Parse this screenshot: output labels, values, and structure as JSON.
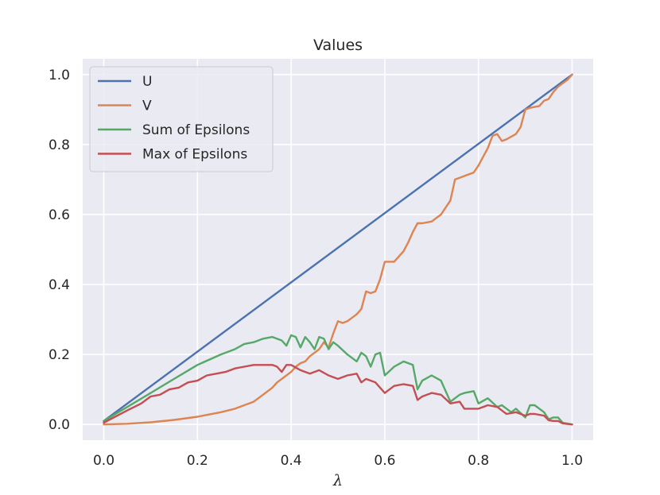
{
  "chart_data": {
    "type": "line",
    "title": "Values",
    "xlabel": "λ",
    "ylabel": "",
    "xlim": [
      -0.045,
      1.045
    ],
    "ylim": [
      -0.045,
      1.045
    ],
    "xticks": [
      0.0,
      0.2,
      0.4,
      0.6,
      0.8,
      1.0
    ],
    "xtick_labels": [
      "0.0",
      "0.2",
      "0.4",
      "0.6",
      "0.8",
      "1.0"
    ],
    "yticks": [
      0.0,
      0.2,
      0.4,
      0.6,
      0.8,
      1.0
    ],
    "ytick_labels": [
      "0.0",
      "0.2",
      "0.4",
      "0.6",
      "0.8",
      "1.0"
    ],
    "grid": true,
    "legend_position": "top-left",
    "background_color": "#eaeaf2",
    "series": [
      {
        "name": "U",
        "color": "#4c72b0",
        "x": [
          0.0,
          1.0
        ],
        "y": [
          0.01,
          1.0
        ]
      },
      {
        "name": "V",
        "color": "#dd8452",
        "x": [
          0.0,
          0.05,
          0.1,
          0.15,
          0.2,
          0.25,
          0.28,
          0.3,
          0.32,
          0.33,
          0.34,
          0.36,
          0.37,
          0.38,
          0.39,
          0.4,
          0.41,
          0.42,
          0.43,
          0.44,
          0.45,
          0.46,
          0.47,
          0.48,
          0.49,
          0.5,
          0.51,
          0.52,
          0.53,
          0.54,
          0.55,
          0.56,
          0.57,
          0.58,
          0.59,
          0.6,
          0.62,
          0.63,
          0.64,
          0.65,
          0.66,
          0.67,
          0.68,
          0.7,
          0.72,
          0.74,
          0.75,
          0.76,
          0.77,
          0.79,
          0.8,
          0.81,
          0.82,
          0.83,
          0.84,
          0.85,
          0.86,
          0.88,
          0.89,
          0.9,
          0.91,
          0.93,
          0.94,
          0.95,
          0.96,
          0.97,
          0.98,
          0.99,
          1.0
        ],
        "y": [
          0.0,
          0.002,
          0.006,
          0.013,
          0.022,
          0.035,
          0.045,
          0.055,
          0.065,
          0.075,
          0.085,
          0.105,
          0.12,
          0.13,
          0.14,
          0.15,
          0.165,
          0.175,
          0.18,
          0.195,
          0.205,
          0.215,
          0.235,
          0.22,
          0.26,
          0.295,
          0.29,
          0.295,
          0.305,
          0.315,
          0.33,
          0.38,
          0.375,
          0.38,
          0.415,
          0.465,
          0.465,
          0.48,
          0.495,
          0.52,
          0.55,
          0.575,
          0.575,
          0.58,
          0.6,
          0.64,
          0.7,
          0.705,
          0.71,
          0.72,
          0.74,
          0.765,
          0.79,
          0.825,
          0.83,
          0.81,
          0.815,
          0.83,
          0.85,
          0.9,
          0.905,
          0.91,
          0.925,
          0.93,
          0.95,
          0.965,
          0.975,
          0.985,
          1.0
        ]
      },
      {
        "name": "Sum of Epsilons",
        "color": "#55a868",
        "x": [
          0.0,
          0.05,
          0.1,
          0.15,
          0.2,
          0.25,
          0.28,
          0.3,
          0.32,
          0.34,
          0.36,
          0.38,
          0.39,
          0.4,
          0.41,
          0.42,
          0.43,
          0.44,
          0.45,
          0.46,
          0.47,
          0.48,
          0.49,
          0.5,
          0.52,
          0.54,
          0.55,
          0.56,
          0.57,
          0.58,
          0.59,
          0.6,
          0.62,
          0.64,
          0.66,
          0.67,
          0.68,
          0.7,
          0.72,
          0.74,
          0.75,
          0.76,
          0.77,
          0.79,
          0.8,
          0.82,
          0.84,
          0.85,
          0.87,
          0.88,
          0.9,
          0.91,
          0.92,
          0.94,
          0.95,
          0.96,
          0.97,
          0.98,
          1.0
        ],
        "y": [
          0.01,
          0.05,
          0.09,
          0.13,
          0.17,
          0.2,
          0.215,
          0.23,
          0.235,
          0.245,
          0.25,
          0.24,
          0.225,
          0.255,
          0.25,
          0.22,
          0.25,
          0.235,
          0.215,
          0.25,
          0.245,
          0.215,
          0.235,
          0.225,
          0.2,
          0.18,
          0.205,
          0.195,
          0.165,
          0.2,
          0.205,
          0.14,
          0.165,
          0.18,
          0.17,
          0.1,
          0.125,
          0.14,
          0.125,
          0.065,
          0.075,
          0.085,
          0.09,
          0.095,
          0.06,
          0.075,
          0.05,
          0.055,
          0.035,
          0.045,
          0.02,
          0.055,
          0.055,
          0.035,
          0.015,
          0.02,
          0.02,
          0.005,
          0.0
        ]
      },
      {
        "name": "Max of Epsilons",
        "color": "#c44e52",
        "x": [
          0.0,
          0.05,
          0.08,
          0.1,
          0.12,
          0.14,
          0.16,
          0.18,
          0.2,
          0.22,
          0.24,
          0.26,
          0.28,
          0.3,
          0.32,
          0.34,
          0.36,
          0.37,
          0.38,
          0.39,
          0.4,
          0.42,
          0.44,
          0.46,
          0.48,
          0.5,
          0.52,
          0.54,
          0.55,
          0.56,
          0.58,
          0.6,
          0.62,
          0.64,
          0.66,
          0.67,
          0.68,
          0.7,
          0.72,
          0.74,
          0.76,
          0.77,
          0.78,
          0.8,
          0.82,
          0.84,
          0.85,
          0.86,
          0.88,
          0.9,
          0.91,
          0.92,
          0.94,
          0.95,
          0.96,
          0.97,
          0.98,
          1.0
        ],
        "y": [
          0.005,
          0.04,
          0.06,
          0.08,
          0.085,
          0.1,
          0.105,
          0.12,
          0.125,
          0.14,
          0.145,
          0.15,
          0.16,
          0.165,
          0.17,
          0.17,
          0.17,
          0.165,
          0.15,
          0.17,
          0.17,
          0.155,
          0.145,
          0.155,
          0.14,
          0.13,
          0.14,
          0.145,
          0.12,
          0.13,
          0.12,
          0.09,
          0.11,
          0.115,
          0.11,
          0.07,
          0.08,
          0.09,
          0.085,
          0.06,
          0.065,
          0.045,
          0.045,
          0.045,
          0.055,
          0.05,
          0.04,
          0.03,
          0.035,
          0.025,
          0.03,
          0.03,
          0.025,
          0.012,
          0.01,
          0.01,
          0.003,
          0.0
        ]
      }
    ]
  }
}
